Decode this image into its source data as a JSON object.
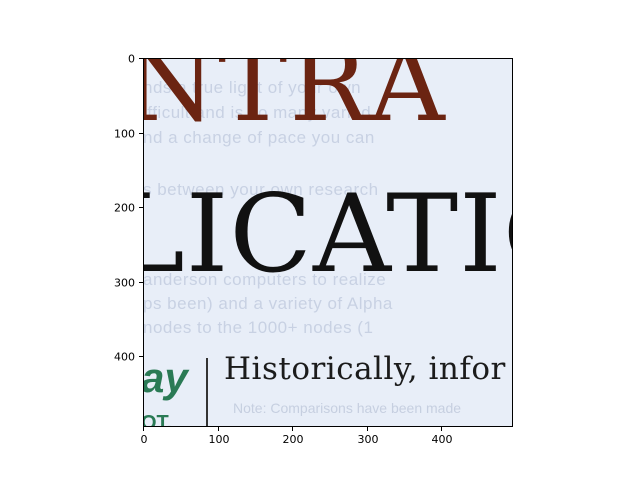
{
  "figure": {
    "image": {
      "headline_top": "NTRA",
      "headline_middle": "LICATIO",
      "side_word": "ay",
      "body_text": "Historically,  infor"
    },
    "x_ticks": [
      "0",
      "100",
      "200",
      "300",
      "400"
    ],
    "y_ticks": [
      "0",
      "100",
      "200",
      "300",
      "400"
    ]
  }
}
